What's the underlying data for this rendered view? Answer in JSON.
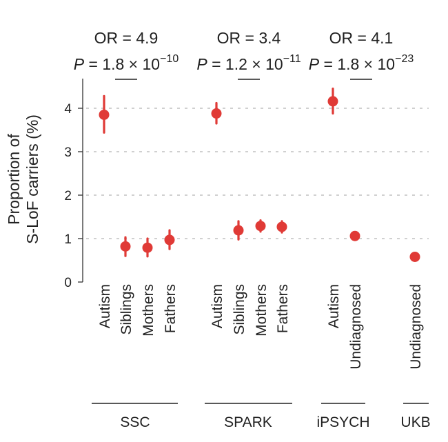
{
  "chart_data": {
    "type": "scatter",
    "ylabel_lines": [
      "Proportion of",
      "S-LoF carriers (%)"
    ],
    "ylim": [
      0,
      4.6
    ],
    "yticks": [
      "0",
      "1",
      "2",
      "3",
      "4"
    ],
    "grid": "horizontal dashed",
    "marker_color": "#e03a36",
    "groups": [
      {
        "name": "SSC",
        "categories": [
          "Autism",
          "Siblings",
          "Mothers",
          "Fathers"
        ],
        "values": [
          3.85,
          0.82,
          0.79,
          0.97
        ],
        "ci_low": [
          3.44,
          0.6,
          0.59,
          0.76
        ],
        "ci_high": [
          4.28,
          1.03,
          1.0,
          1.19
        ],
        "annotation": {
          "or_text": "OR = 4.9",
          "p_prefix": "P",
          "p_text": " = 1.8 × 10",
          "p_exp": "−10"
        }
      },
      {
        "name": "SPARK",
        "categories": [
          "Autism",
          "Siblings",
          "Mothers",
          "Fathers"
        ],
        "values": [
          3.88,
          1.19,
          1.29,
          1.27
        ],
        "ci_low": [
          3.65,
          0.98,
          1.16,
          1.14
        ],
        "ci_high": [
          4.12,
          1.4,
          1.42,
          1.4
        ],
        "annotation": {
          "or_text": "OR = 3.4",
          "p_prefix": "P",
          "p_text": " = 1.2 × 10",
          "p_exp": "−11"
        }
      },
      {
        "name": "iPSYCH",
        "categories": [
          "Autism",
          "Undiagnosed"
        ],
        "values": [
          4.16,
          1.06
        ],
        "ci_low": [
          3.88,
          0.97
        ],
        "ci_high": [
          4.45,
          1.15
        ],
        "annotation": {
          "or_text": "OR = 4.1",
          "p_prefix": "P",
          "p_text": " = 1.8 × 10",
          "p_exp": "−23"
        }
      },
      {
        "name": "UKB",
        "categories": [
          "Undiagnosed"
        ],
        "values": [
          0.58
        ],
        "ci_low": [
          0.55
        ],
        "ci_high": [
          0.61
        ]
      }
    ]
  }
}
